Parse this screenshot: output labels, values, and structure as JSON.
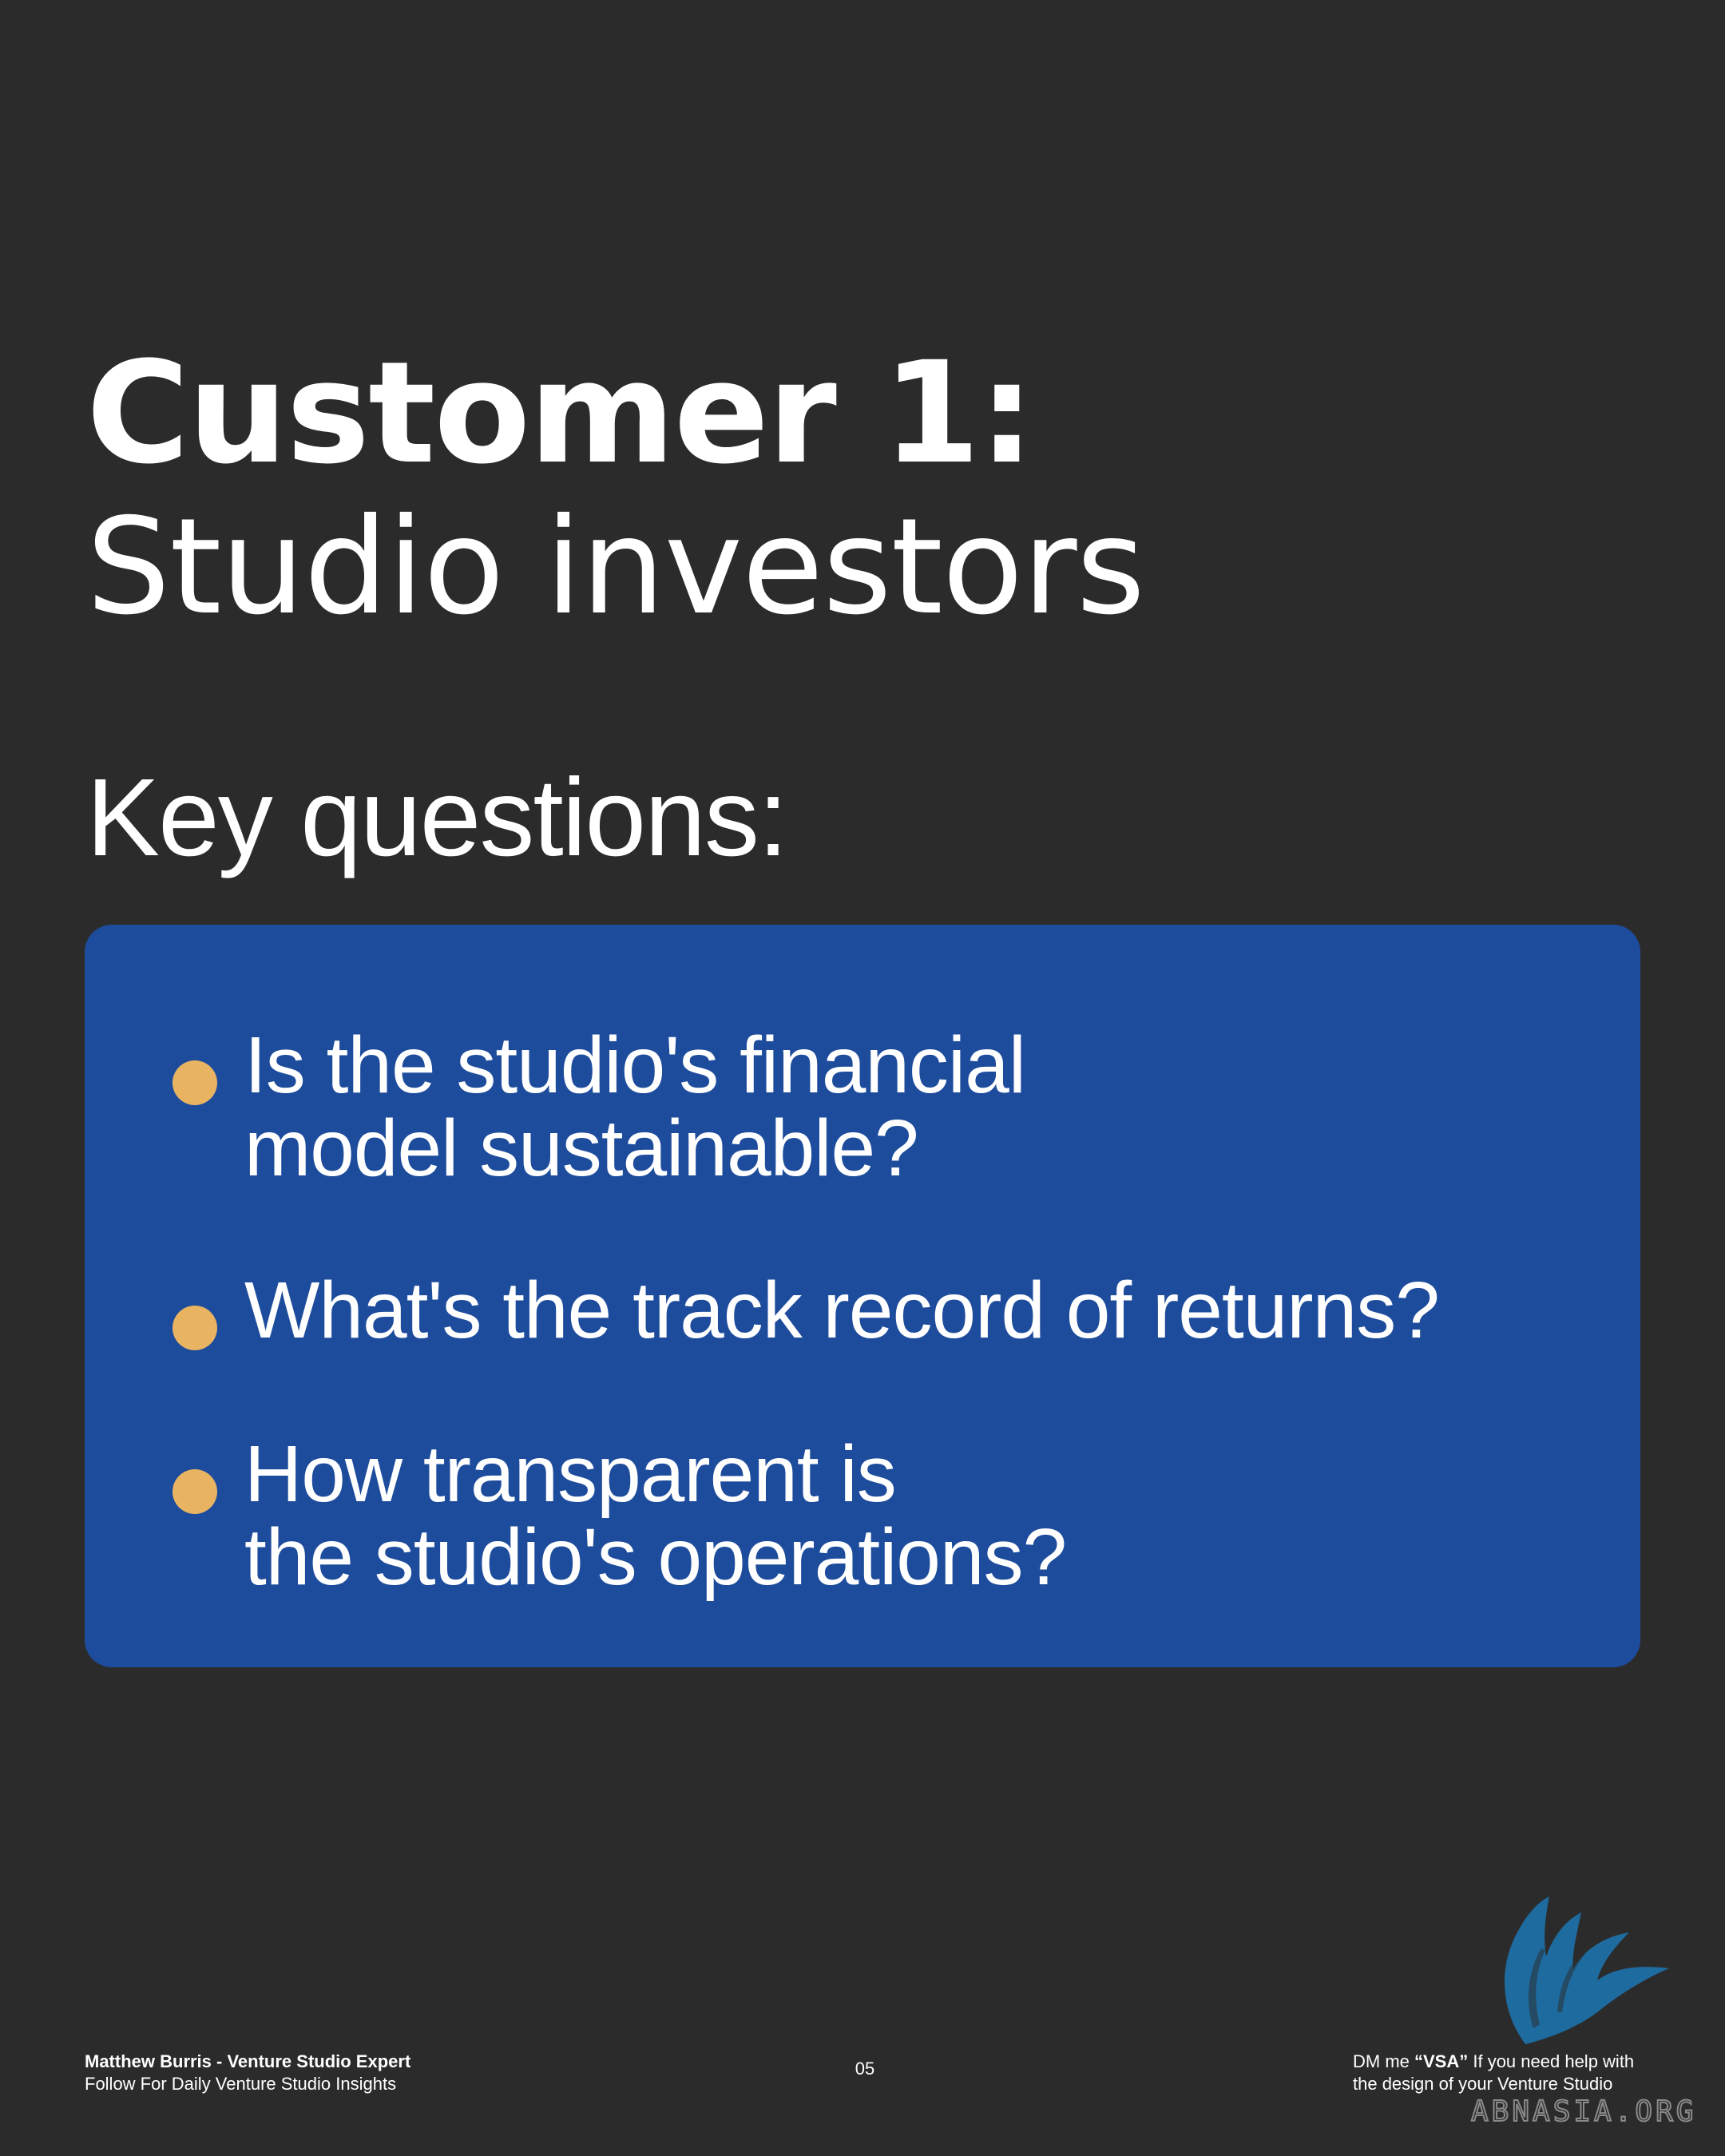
{
  "heading": {
    "line1": "Customer 1:",
    "line2": "Studio investors"
  },
  "subheading": "Key questions:",
  "questions": [
    {
      "line1": "Is the studio's financial",
      "line2": "model sustainable?"
    },
    {
      "line1": "What's the track record of returns?",
      "line2": ""
    },
    {
      "line1": "How transparent is",
      "line2": "the studio's operations?"
    }
  ],
  "footer": {
    "author": "Matthew Burris - Venture Studio Expert",
    "tagline": "Follow For Daily Venture Studio Insights",
    "page_number": "05",
    "cta_prefix": "DM me ",
    "cta_keyword": "“VSA”",
    "cta_suffix": " If you need help with",
    "cta_line2": "the design of your Venture Studio"
  },
  "watermark": "ABNASIA.ORG",
  "colors": {
    "background": "#2b2b2b",
    "panel": "#1e4c9c",
    "bullet": "#e8b462",
    "bird_logo": "#1d6fa5"
  },
  "icons": [
    "bird-logo-icon"
  ]
}
